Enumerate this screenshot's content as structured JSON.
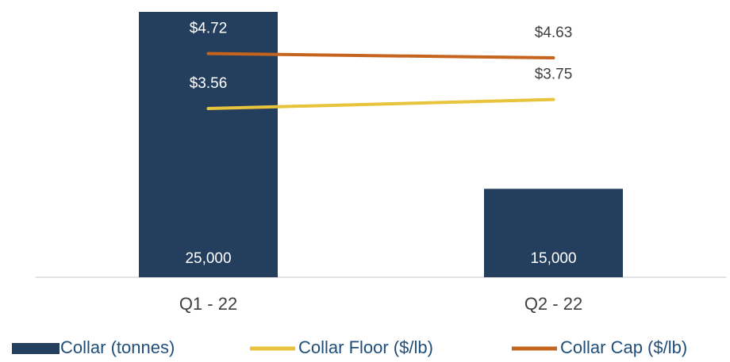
{
  "chart_data": {
    "type": "bar-line",
    "categories": [
      "Q1 - 22",
      "Q2 - 22"
    ],
    "series": [
      {
        "name": "Collar (tonnes)",
        "type": "bar",
        "color": "#243f5e",
        "values": [
          25000,
          15000
        ],
        "value_labels": [
          "25,000",
          "15,000"
        ]
      },
      {
        "name": "Collar Floor ($/lb)",
        "type": "line",
        "axis": "y2",
        "color": "#e8c33c",
        "values": [
          3.56,
          3.75
        ],
        "value_labels": [
          "$3.56",
          "$3.75"
        ]
      },
      {
        "name": "Collar Cap ($/lb)",
        "type": "line",
        "axis": "y2",
        "color": "#c5641f",
        "values": [
          4.72,
          4.63
        ],
        "value_labels": [
          "$4.72",
          "$4.63"
        ]
      }
    ],
    "ylim": [
      10000,
      25000
    ],
    "y2lim": [
      0,
      5.6
    ]
  }
}
